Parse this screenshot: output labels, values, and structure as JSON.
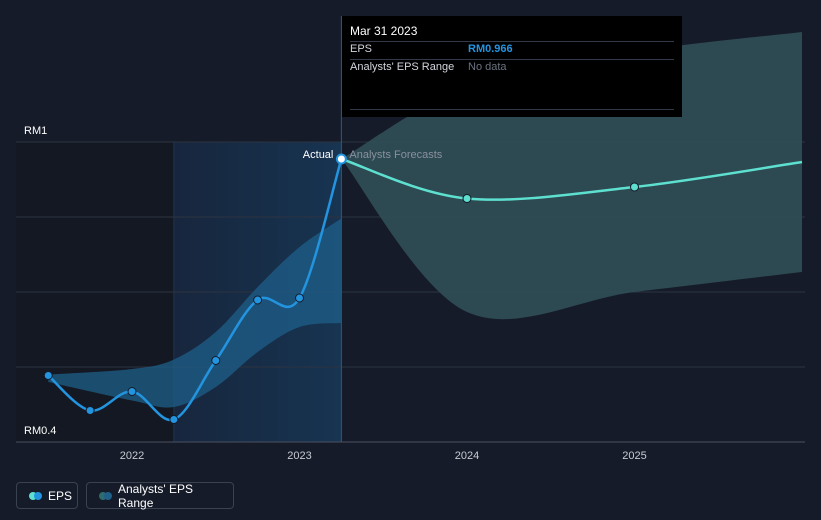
{
  "tooltip": {
    "date": "Mar 31 2023",
    "rows": [
      {
        "label": "EPS",
        "value": "RM0.966",
        "color": "#2394df"
      },
      {
        "label": "Analysts' EPS Range",
        "value": "No data",
        "color": "#6b7280"
      }
    ]
  },
  "legend": {
    "eps_label": "EPS",
    "range_label": "Analysts' EPS Range"
  },
  "colors": {
    "eps": "#2394df",
    "forecast": "#5ee0d0",
    "forecast_range": "#2e4c53",
    "history_range": "#1f5f8a",
    "background": "#151b29"
  },
  "chart_data": {
    "type": "line",
    "title": "",
    "xlabel": "",
    "ylabel": "",
    "ylim": [
      0.4,
      1.0
    ],
    "y_ticks": [
      {
        "value": 1.0,
        "label": "RM1"
      },
      {
        "value": 0.4,
        "label": "RM0.4"
      }
    ],
    "x_ticks": [
      {
        "x": 2022.0,
        "label": "2022"
      },
      {
        "x": 2023.0,
        "label": "2023"
      },
      {
        "x": 2024.0,
        "label": "2024"
      },
      {
        "x": 2025.0,
        "label": "2025"
      }
    ],
    "xlim": [
      2021.3,
      2026.0
    ],
    "region_labels": {
      "actual": "Actual",
      "forecast": "Analysts Forecasts"
    },
    "actual_region": [
      2021.5,
      2023.25
    ],
    "forecast_start": 2023.25,
    "series": [
      {
        "name": "EPS",
        "kind": "actual",
        "x": [
          2021.5,
          2021.75,
          2022.0,
          2022.25,
          2022.5,
          2022.75,
          2023.0,
          2023.25
        ],
        "values": [
          0.533,
          0.463,
          0.501,
          0.445,
          0.563,
          0.684,
          0.688,
          0.966
        ]
      },
      {
        "name": "EPS forecast",
        "kind": "forecast",
        "x": [
          2023.25,
          2024.0,
          2025.0,
          2026.0
        ],
        "values": [
          0.966,
          0.887,
          0.91,
          0.96
        ]
      }
    ],
    "history_range_band": {
      "x": [
        2021.5,
        2022.0,
        2022.25,
        2022.5,
        2022.75,
        2023.0,
        2023.25
      ],
      "upper": [
        0.535,
        0.546,
        0.565,
        0.62,
        0.71,
        0.79,
        0.847
      ],
      "lower": [
        0.52,
        0.483,
        0.47,
        0.51,
        0.58,
        0.63,
        0.638
      ]
    },
    "forecast_range_band": {
      "x": [
        2023.25,
        2024.0,
        2025.0,
        2026.0
      ],
      "upper": [
        0.966,
        1.11,
        1.18,
        1.22
      ],
      "lower": [
        0.966,
        0.66,
        0.7,
        0.74
      ]
    }
  }
}
